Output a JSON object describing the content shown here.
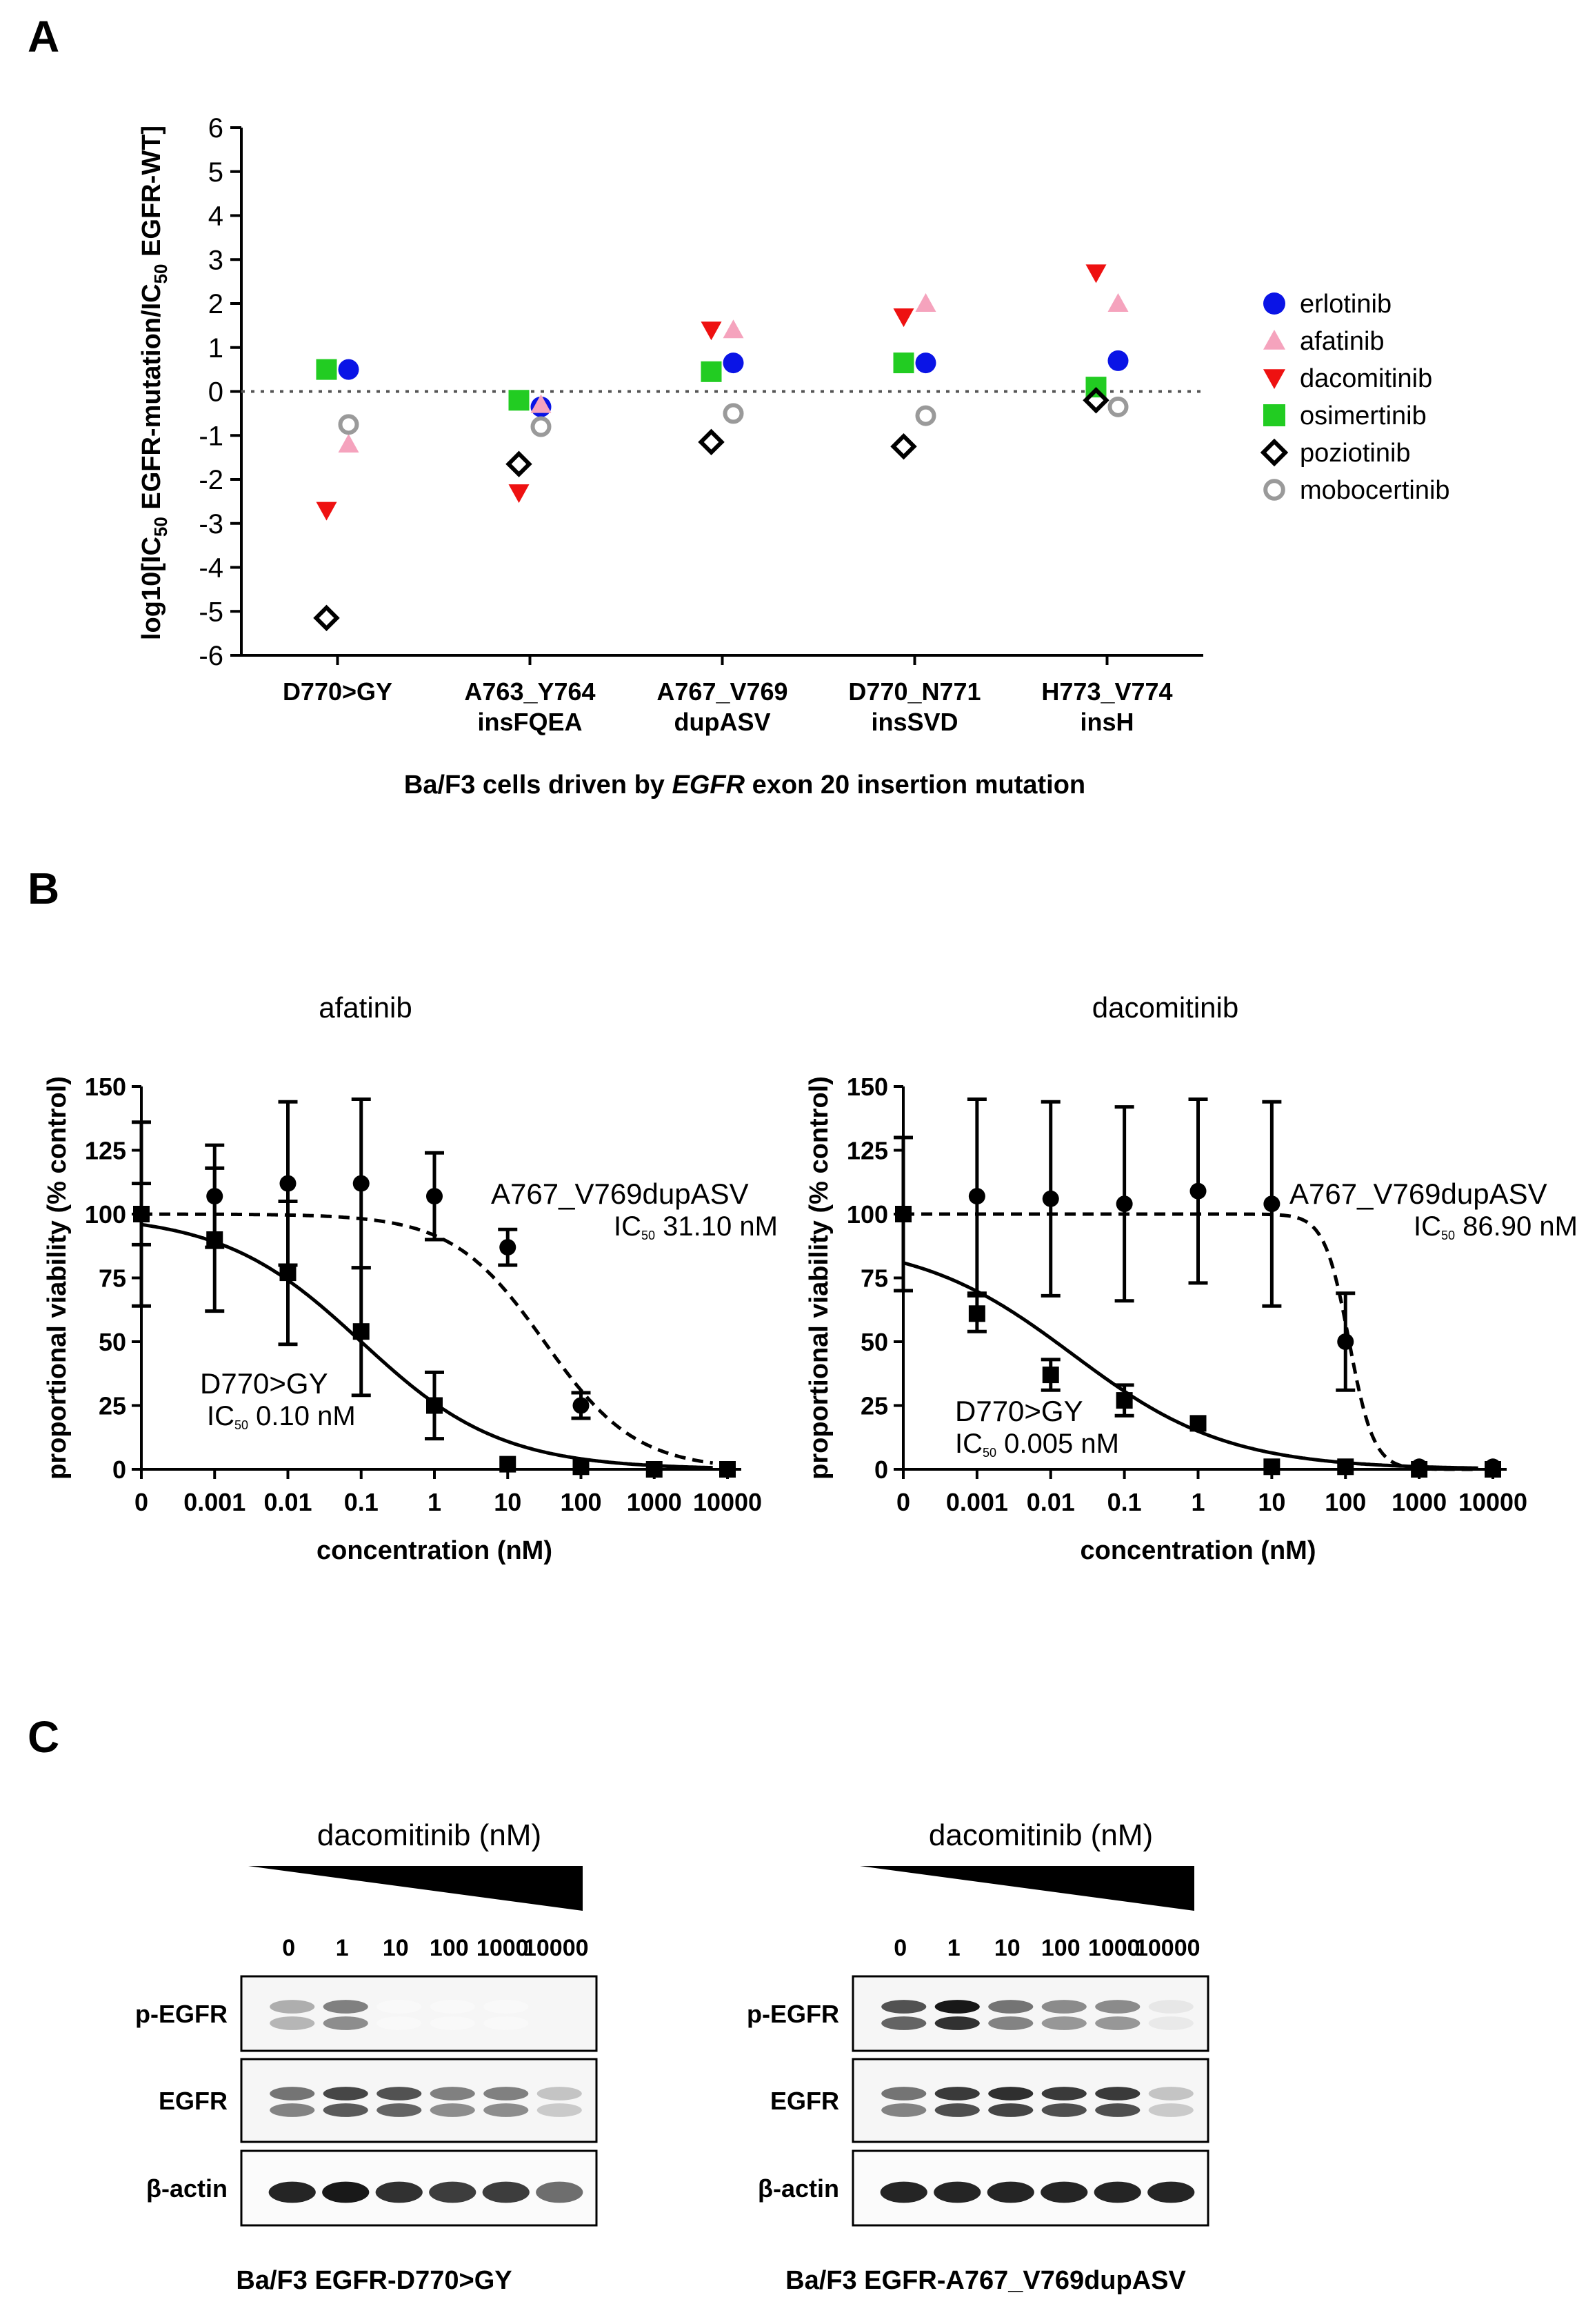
{
  "panels": {
    "a": "A",
    "b": "B",
    "c": "C"
  },
  "chart_data": [
    {
      "type": "scatter",
      "panel": "A",
      "ylabel": "log10[IC50 EGFR-mutation/IC50 EGFR-WT]",
      "ylabel_parts": {
        "pre": "log10[IC",
        "sub1": "50",
        "mid": " EGFR-mutation/IC",
        "sub2": "50",
        "post": " EGFR-WT]"
      },
      "xlabel": {
        "pre": "Ba/F3 cells driven by ",
        "italic": "EGFR",
        "post": " exon 20 insertion mutation"
      },
      "ylim": [
        -6,
        6
      ],
      "yticks": [
        "6",
        "5",
        "4",
        "3",
        "2",
        "1",
        "0",
        "-1",
        "-2",
        "-3",
        "-4",
        "-5",
        "-6"
      ],
      "categories": [
        [
          "D770>GY"
        ],
        [
          "A763_Y764",
          "insFQEA"
        ],
        [
          "A767_V769",
          "dupASV"
        ],
        [
          "D770_N771",
          "insSVD"
        ],
        [
          "H773_V774",
          "insH"
        ]
      ],
      "series": [
        {
          "name": "erlotinib",
          "color": "#0a14e6",
          "marker": "circle",
          "values": [
            0.5,
            -0.35,
            0.65,
            0.65,
            0.7
          ]
        },
        {
          "name": "afatinib",
          "color": "#f5a3bd",
          "marker": "triangle-up",
          "values": [
            -1.2,
            -0.3,
            1.4,
            2.0,
            2.0
          ]
        },
        {
          "name": "dacomitinib",
          "color": "#ee1111",
          "marker": "triangle-down",
          "values": [
            -2.7,
            -2.3,
            1.4,
            1.7,
            2.7
          ]
        },
        {
          "name": "osimertinib",
          "color": "#22cc22",
          "marker": "square",
          "values": [
            0.5,
            -0.2,
            0.45,
            0.65,
            0.1
          ]
        },
        {
          "name": "poziotinib",
          "color": "#000000",
          "marker": "diamond-open",
          "values": [
            -5.15,
            -1.65,
            -1.15,
            -1.25,
            -0.2
          ]
        },
        {
          "name": "mobocertinib",
          "color": "#9a9a9a",
          "marker": "circle-open",
          "values": [
            -0.75,
            -0.8,
            -0.5,
            -0.55,
            -0.35
          ]
        }
      ]
    },
    {
      "type": "line",
      "panel": "B-left",
      "title": "afatinib",
      "ylabel": "proportional viability (% control)",
      "xlabel": "concentration (nM)",
      "xticks": [
        "0",
        "0.001",
        "0.01",
        "0.1",
        "1",
        "10",
        "100",
        "1000",
        "10000"
      ],
      "yticks": [
        "0",
        "25",
        "50",
        "75",
        "100",
        "125",
        "150"
      ],
      "ylim": [
        0,
        150
      ],
      "series": [
        {
          "name": "A767_V769dupASV",
          "marker": "circle",
          "dash": true,
          "x": [
            "0",
            "0.001",
            "0.01",
            "0.1",
            "1",
            "10",
            "100",
            "1000",
            "10000"
          ],
          "y": [
            100,
            107,
            112,
            112,
            107,
            87,
            25,
            0,
            0
          ],
          "err": [
            36,
            20,
            32,
            33,
            17,
            7,
            5,
            0,
            0
          ]
        },
        {
          "name": "D770>GY",
          "marker": "square",
          "dash": false,
          "x": [
            "0",
            "0.001",
            "0.01",
            "0.1",
            "1",
            "10",
            "100",
            "1000",
            "10000"
          ],
          "y": [
            100,
            90,
            77,
            54,
            25,
            2,
            1,
            0,
            0
          ],
          "err": [
            12,
            28,
            28,
            25,
            13,
            0,
            0,
            0,
            0
          ]
        }
      ],
      "annotations": [
        {
          "label": "A767_V769dupASV",
          "ic50_prefix": "IC",
          "ic50_sub": "50",
          "ic50_value": " 31.10 nM"
        },
        {
          "label": "D770>GY",
          "ic50_prefix": "IC",
          "ic50_sub": "50",
          "ic50_value": " 0.10 nM"
        }
      ]
    },
    {
      "type": "line",
      "panel": "B-right",
      "title": "dacomitinib",
      "ylabel": "proportional viability (% control)",
      "xlabel": "concentration (nM)",
      "xticks": [
        "0",
        "0.001",
        "0.01",
        "0.1",
        "1",
        "10",
        "100",
        "1000",
        "10000"
      ],
      "yticks": [
        "0",
        "25",
        "50",
        "75",
        "100",
        "125",
        "150"
      ],
      "ylim": [
        0,
        150
      ],
      "series": [
        {
          "name": "A767_V769dupASV",
          "marker": "circle",
          "dash": true,
          "x": [
            "0",
            "0.001",
            "0.01",
            "0.1",
            "1",
            "10",
            "100",
            "1000",
            "10000"
          ],
          "y": [
            100,
            107,
            106,
            104,
            109,
            104,
            50,
            1,
            1
          ],
          "err": [
            30,
            38,
            38,
            38,
            36,
            40,
            19,
            0,
            0
          ]
        },
        {
          "name": "D770>GY",
          "marker": "square",
          "dash": false,
          "x": [
            "0",
            "0.001",
            "0.01",
            "0.1",
            "1",
            "10",
            "100",
            "1000",
            "10000"
          ],
          "y": [
            100,
            61,
            37,
            27,
            18,
            1,
            1,
            0,
            0
          ],
          "err": [
            0,
            7,
            6,
            6,
            0,
            0,
            0,
            0,
            0
          ]
        }
      ],
      "annotations": [
        {
          "label": "A767_V769dupASV",
          "ic50_prefix": "IC",
          "ic50_sub": "50",
          "ic50_value": " 86.90 nM"
        },
        {
          "label": "D770>GY",
          "ic50_prefix": "IC",
          "ic50_sub": "50",
          "ic50_value": " 0.005 nM"
        }
      ]
    }
  ],
  "western": {
    "drug_label": "dacomitinib (nM)",
    "concentrations": [
      "0",
      "1",
      "10",
      "100",
      "1000",
      "10000"
    ],
    "row_labels": [
      "p-EGFR",
      "EGFR",
      "β-actin"
    ],
    "blots": [
      {
        "caption": "Ba/F3 EGFR-D770>GY",
        "intensity": {
          "p-EGFR": [
            0.35,
            0.55,
            0.02,
            0.02,
            0.02,
            0.0
          ],
          "EGFR": [
            0.6,
            0.8,
            0.75,
            0.55,
            0.55,
            0.25
          ],
          "β-actin": [
            0.9,
            0.95,
            0.85,
            0.8,
            0.8,
            0.6
          ]
        }
      },
      {
        "caption": "Ba/F3 EGFR-A767_V769dupASV",
        "intensity": {
          "p-EGFR": [
            0.75,
            1.0,
            0.6,
            0.5,
            0.5,
            0.1
          ],
          "EGFR": [
            0.6,
            0.85,
            0.9,
            0.85,
            0.85,
            0.25
          ],
          "β-actin": [
            0.9,
            0.9,
            0.9,
            0.9,
            0.9,
            0.9
          ]
        }
      }
    ]
  }
}
